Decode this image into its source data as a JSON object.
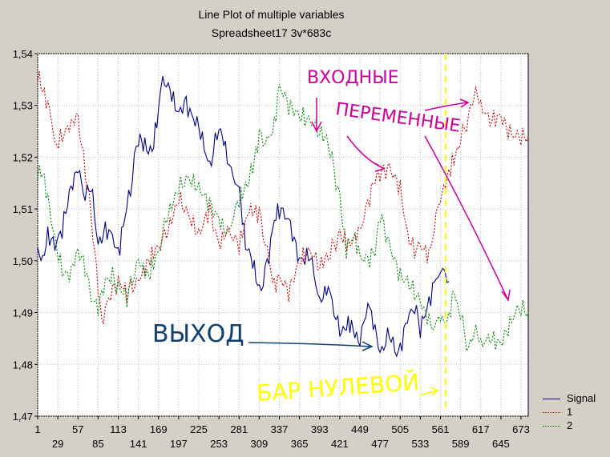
{
  "chart_data": {
    "type": "line",
    "title": "Line Plot of multiple variables",
    "subtitle": "Spreadsheet17 3v*683c",
    "xlabel": "",
    "ylabel": "",
    "xlim": [
      1,
      683
    ],
    "ylim": [
      1.47,
      1.54
    ],
    "y_ticks": [
      "1,47",
      "1,48",
      "1,49",
      "1,50",
      "1,51",
      "1,52",
      "1,53",
      "1,54"
    ],
    "x_ticks_top": [
      "1",
      "57",
      "113",
      "169",
      "225",
      "281",
      "337",
      "393",
      "449",
      "505",
      "561",
      "617",
      "673"
    ],
    "x_ticks_bottom": [
      "29",
      "85",
      "141",
      "197",
      "253",
      "309",
      "365",
      "421",
      "477",
      "533",
      "589",
      "645"
    ],
    "grid": true,
    "legend_position": "bottom-right",
    "series": [
      {
        "name": "Signal",
        "color": "#000080",
        "style": "solid",
        "points": [
          [
            1,
            1.502
          ],
          [
            8,
            1.5
          ],
          [
            15,
            1.505
          ],
          [
            25,
            1.503
          ],
          [
            35,
            1.506
          ],
          [
            45,
            1.513
          ],
          [
            57,
            1.518
          ],
          [
            67,
            1.512
          ],
          [
            75,
            1.515
          ],
          [
            85,
            1.503
          ],
          [
            95,
            1.506
          ],
          [
            105,
            1.505
          ],
          [
            113,
            1.501
          ],
          [
            120,
            1.507
          ],
          [
            130,
            1.514
          ],
          [
            141,
            1.524
          ],
          [
            150,
            1.522
          ],
          [
            160,
            1.521
          ],
          [
            169,
            1.529
          ],
          [
            175,
            1.535
          ],
          [
            185,
            1.533
          ],
          [
            197,
            1.528
          ],
          [
            205,
            1.531
          ],
          [
            215,
            1.528
          ],
          [
            225,
            1.526
          ],
          [
            240,
            1.518
          ],
          [
            253,
            1.526
          ],
          [
            262,
            1.522
          ],
          [
            270,
            1.517
          ],
          [
            281,
            1.514
          ],
          [
            290,
            1.503
          ],
          [
            300,
            1.5
          ],
          [
            309,
            1.494
          ],
          [
            320,
            1.499
          ],
          [
            330,
            1.508
          ],
          [
            337,
            1.51
          ],
          [
            350,
            1.508
          ],
          [
            365,
            1.5
          ],
          [
            380,
            1.501
          ],
          [
            393,
            1.492
          ],
          [
            405,
            1.495
          ],
          [
            421,
            1.486
          ],
          [
            435,
            1.488
          ],
          [
            449,
            1.484
          ],
          [
            460,
            1.492
          ],
          [
            470,
            1.487
          ],
          [
            477,
            1.482
          ],
          [
            490,
            1.486
          ],
          [
            500,
            1.482
          ],
          [
            505,
            1.483
          ],
          [
            515,
            1.489
          ],
          [
            525,
            1.491
          ],
          [
            533,
            1.487
          ],
          [
            545,
            1.492
          ],
          [
            555,
            1.497
          ],
          [
            561,
            1.497
          ],
          [
            567,
            1.498
          ],
          [
            573,
            1.496
          ]
        ]
      },
      {
        "name": "1",
        "color": "#c00000",
        "style": "dotted",
        "points": [
          [
            1,
            1.536
          ],
          [
            8,
            1.533
          ],
          [
            15,
            1.53
          ],
          [
            20,
            1.528
          ],
          [
            25,
            1.522
          ],
          [
            35,
            1.524
          ],
          [
            45,
            1.526
          ],
          [
            57,
            1.528
          ],
          [
            62,
            1.522
          ],
          [
            70,
            1.515
          ],
          [
            78,
            1.505
          ],
          [
            85,
            1.495
          ],
          [
            90,
            1.488
          ],
          [
            100,
            1.493
          ],
          [
            113,
            1.496
          ],
          [
            125,
            1.494
          ],
          [
            141,
            1.496
          ],
          [
            155,
            1.5
          ],
          [
            169,
            1.503
          ],
          [
            180,
            1.505
          ],
          [
            197,
            1.512
          ],
          [
            210,
            1.509
          ],
          [
            225,
            1.505
          ],
          [
            240,
            1.51
          ],
          [
            253,
            1.503
          ],
          [
            265,
            1.506
          ],
          [
            281,
            1.503
          ],
          [
            295,
            1.51
          ],
          [
            309,
            1.509
          ],
          [
            320,
            1.502
          ],
          [
            330,
            1.495
          ],
          [
            337,
            1.497
          ],
          [
            350,
            1.494
          ],
          [
            365,
            1.5
          ],
          [
            380,
            1.502
          ],
          [
            393,
            1.499
          ],
          [
            405,
            1.501
          ],
          [
            421,
            1.505
          ],
          [
            435,
            1.503
          ],
          [
            449,
            1.506
          ],
          [
            460,
            1.511
          ],
          [
            470,
            1.516
          ],
          [
            477,
            1.517
          ],
          [
            490,
            1.518
          ],
          [
            505,
            1.514
          ],
          [
            515,
            1.505
          ],
          [
            525,
            1.502
          ],
          [
            533,
            1.503
          ],
          [
            545,
            1.501
          ],
          [
            555,
            1.508
          ],
          [
            561,
            1.512
          ],
          [
            575,
            1.518
          ],
          [
            589,
            1.523
          ],
          [
            600,
            1.528
          ],
          [
            610,
            1.533
          ],
          [
            617,
            1.53
          ],
          [
            630,
            1.527
          ],
          [
            645,
            1.528
          ],
          [
            655,
            1.525
          ],
          [
            665,
            1.524
          ],
          [
            673,
            1.524
          ],
          [
            683,
            1.524
          ]
        ]
      },
      {
        "name": "2",
        "color": "#008000",
        "style": "dotted",
        "points": [
          [
            1,
            1.517
          ],
          [
            8,
            1.517
          ],
          [
            15,
            1.512
          ],
          [
            25,
            1.504
          ],
          [
            35,
            1.498
          ],
          [
            45,
            1.497
          ],
          [
            57,
            1.502
          ],
          [
            67,
            1.499
          ],
          [
            75,
            1.493
          ],
          [
            85,
            1.491
          ],
          [
            95,
            1.496
          ],
          [
            105,
            1.497
          ],
          [
            113,
            1.495
          ],
          [
            125,
            1.493
          ],
          [
            141,
            1.5
          ],
          [
            155,
            1.497
          ],
          [
            169,
            1.502
          ],
          [
            180,
            1.508
          ],
          [
            197,
            1.514
          ],
          [
            210,
            1.516
          ],
          [
            225,
            1.514
          ],
          [
            240,
            1.511
          ],
          [
            253,
            1.508
          ],
          [
            265,
            1.505
          ],
          [
            281,
            1.512
          ],
          [
            290,
            1.514
          ],
          [
            300,
            1.518
          ],
          [
            309,
            1.524
          ],
          [
            320,
            1.523
          ],
          [
            330,
            1.526
          ],
          [
            337,
            1.534
          ],
          [
            350,
            1.53
          ],
          [
            365,
            1.528
          ],
          [
            380,
            1.527
          ],
          [
            393,
            1.525
          ],
          [
            405,
            1.523
          ],
          [
            421,
            1.512
          ],
          [
            430,
            1.502
          ],
          [
            440,
            1.505
          ],
          [
            449,
            1.501
          ],
          [
            460,
            1.5
          ],
          [
            470,
            1.502
          ],
          [
            477,
            1.509
          ],
          [
            490,
            1.503
          ],
          [
            505,
            1.497
          ],
          [
            515,
            1.496
          ],
          [
            525,
            1.494
          ],
          [
            533,
            1.492
          ],
          [
            540,
            1.49
          ],
          [
            550,
            1.487
          ],
          [
            561,
            1.489
          ],
          [
            570,
            1.488
          ],
          [
            580,
            1.494
          ],
          [
            589,
            1.489
          ],
          [
            600,
            1.483
          ],
          [
            610,
            1.487
          ],
          [
            617,
            1.484
          ],
          [
            630,
            1.485
          ],
          [
            645,
            1.484
          ],
          [
            655,
            1.487
          ],
          [
            665,
            1.49
          ],
          [
            673,
            1.491
          ],
          [
            683,
            1.49
          ]
        ]
      }
    ],
    "annotations": [
      {
        "text": "ВХОДНЫЕ",
        "color": "#cc0099"
      },
      {
        "text": "ПЕРЕМЕННЫЕ",
        "color": "#cc0099"
      },
      {
        "text": "ВЫХОД",
        "color": "#104070"
      },
      {
        "text": "БАР НУЛЕВОЙ",
        "color": "#ffff00"
      }
    ]
  }
}
